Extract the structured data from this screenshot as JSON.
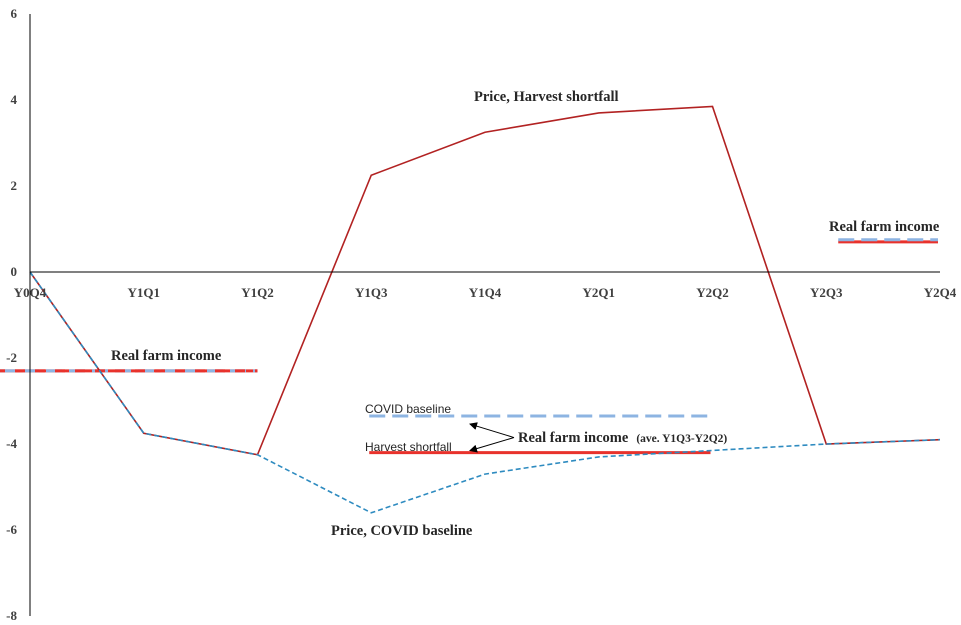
{
  "chart_data": {
    "type": "line",
    "categories": [
      "Y0Q4",
      "Y1Q1",
      "Y1Q2",
      "Y1Q3",
      "Y1Q4",
      "Y2Q1",
      "Y2Q2",
      "Y2Q3",
      "Y2Q4"
    ],
    "yticks": [
      "6",
      "4",
      "2",
      "0",
      "-2",
      "-4",
      "-6",
      "-8"
    ],
    "ylim": [
      -8,
      6
    ],
    "grid": false,
    "colors": {
      "harvest": "#B22222",
      "harvest_income": "#E8322C",
      "covid": "#2E8BC0",
      "covid_income": "#8DB4E2",
      "axis": "#000000"
    },
    "series": [
      {
        "name": "Price, Harvest shortfall",
        "values": [
          0,
          -3.75,
          -4.25,
          2.25,
          3.25,
          3.7,
          3.85,
          -4.0,
          -3.9
        ]
      },
      {
        "name": "Price, COVID baseline",
        "values": [
          0,
          -3.75,
          -4.25,
          -5.6,
          -4.7,
          -4.3,
          -4.15,
          -4.0,
          -3.9
        ]
      }
    ],
    "income_segments": [
      {
        "label": "Real farm income",
        "covid": -2.3,
        "harvest": -2.3,
        "from": "Y0Q4",
        "to": "Y1Q2"
      },
      {
        "covid": -3.35,
        "harvest": -4.2,
        "from": "Y1Q3",
        "to": "Y2Q2"
      },
      {
        "label": "Real farm income",
        "covid": 0.75,
        "harvest": 0.7,
        "from": "Y2Q3",
        "to": "Y2Q4"
      }
    ],
    "annotations": {
      "harvest_price": "Price, Harvest shortfall",
      "covid_price": "Price, COVID baseline",
      "income_left": "Real farm income",
      "income_right": "Real farm income",
      "income_mid": "Real farm income",
      "income_mid_note": "(ave. Y1Q3-Y2Q2)",
      "covid_baseline": "COVID baseline",
      "harvest_shortfall": "Harvest shortfall"
    }
  }
}
